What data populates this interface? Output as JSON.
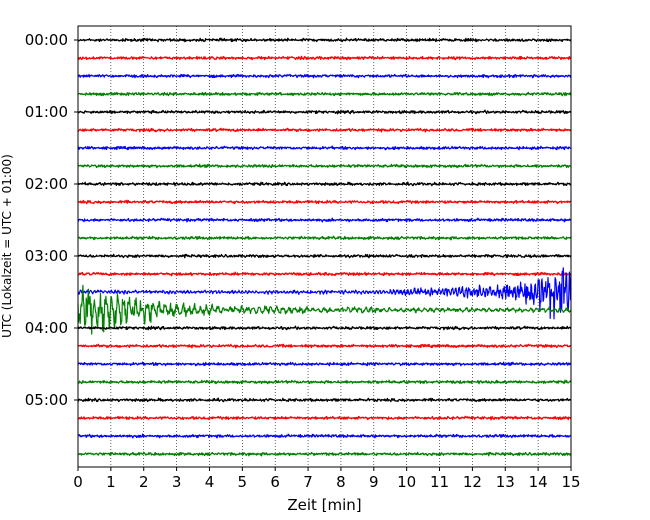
{
  "chart_data": {
    "type": "line",
    "title": "",
    "xlabel": "Zeit  [min]",
    "ylabel": "UTC (Lokalzeit = UTC + 01:00)",
    "xlim": [
      0,
      15
    ],
    "x_ticks": [
      "0",
      "1",
      "2",
      "3",
      "4",
      "5",
      "6",
      "7",
      "8",
      "9",
      "10",
      "11",
      "12",
      "13",
      "14",
      "15"
    ],
    "y_ticks": [
      "00:00",
      "01:00",
      "02:00",
      "03:00",
      "04:00",
      "05:00"
    ],
    "grid": {
      "vertical": true,
      "style": "dotted"
    },
    "rows_per_hour": 4,
    "minutes_per_row": 15,
    "row_start_times": [
      "00:00",
      "00:15",
      "00:30",
      "00:45",
      "01:00",
      "01:15",
      "01:30",
      "01:45",
      "02:00",
      "02:15",
      "02:30",
      "02:45",
      "03:00",
      "03:15",
      "03:30",
      "03:45",
      "04:00",
      "04:15",
      "04:30",
      "04:45",
      "05:00",
      "05:15",
      "05:30",
      "05:45"
    ],
    "trace_colors": [
      "#000000",
      "#ff0000",
      "#0000ff",
      "#008000"
    ],
    "events": [
      {
        "row_start": "03:30",
        "color": "#0000ff",
        "onset_min": 9.0,
        "strong_from_min": 13.5,
        "peak_amplitude": "high",
        "description_level": "earthquake onset"
      },
      {
        "row_start": "03:45",
        "color": "#008000",
        "onset_min": 0.0,
        "peak_min": 0.3,
        "decay_until_min": 9.0,
        "peak_amplitude": "high"
      }
    ]
  }
}
